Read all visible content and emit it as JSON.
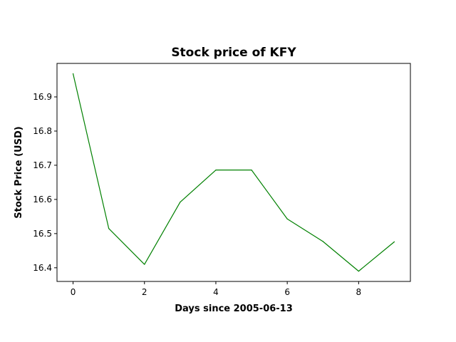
{
  "chart_data": {
    "type": "line",
    "title": "Stock price of KFY",
    "xlabel": "Days since 2005-06-13",
    "ylabel": "Stock Price (USD)",
    "x": [
      0,
      1,
      2,
      3,
      4,
      5,
      6,
      7,
      8,
      9
    ],
    "series": [
      {
        "values": [
          16.968,
          16.515,
          16.41,
          16.592,
          16.686,
          16.686,
          16.543,
          16.477,
          16.39,
          16.476
        ],
        "color": "#008000"
      }
    ],
    "xlim": [
      -0.45,
      9.45
    ],
    "ylim": [
      16.36,
      16.998
    ],
    "xticks": [
      0,
      2,
      4,
      6,
      8
    ],
    "yticks": [
      16.4,
      16.5,
      16.6,
      16.7,
      16.8,
      16.9
    ],
    "xtick_labels": [
      "0",
      "2",
      "4",
      "6",
      "8"
    ],
    "ytick_labels": [
      "16.4",
      "16.5",
      "16.6",
      "16.7",
      "16.8",
      "16.9"
    ],
    "grid": false,
    "legend": "none"
  }
}
